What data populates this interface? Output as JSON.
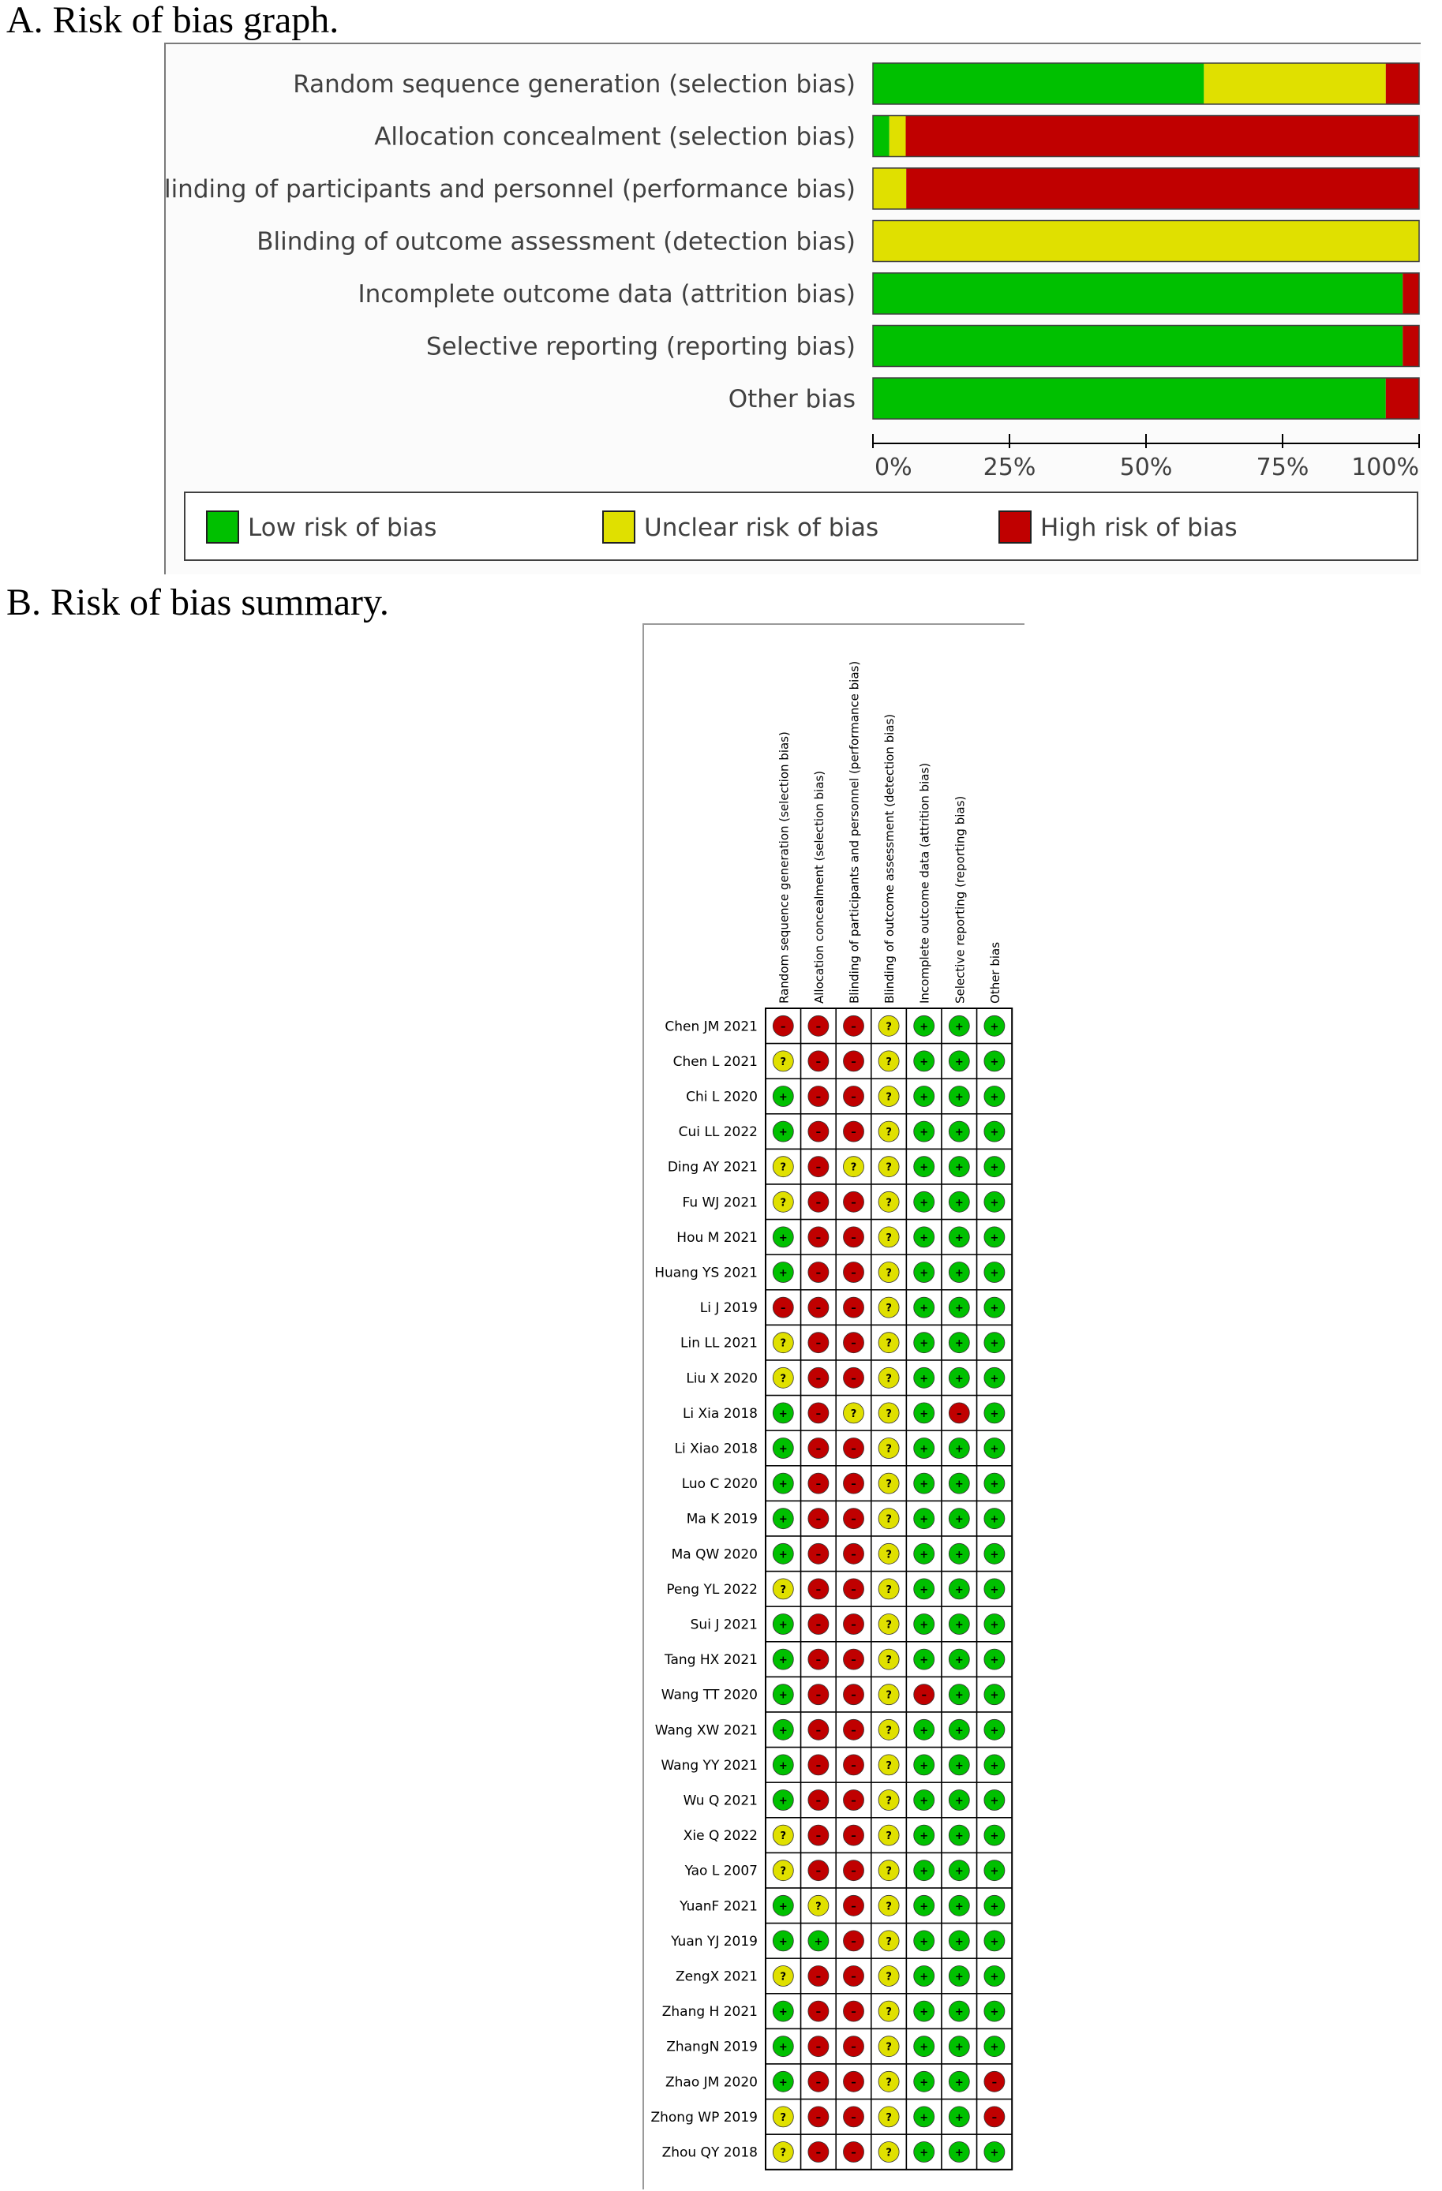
{
  "panel_a_title": "A.  Risk of bias graph.",
  "panel_b_title": "B.  Risk of bias summary.",
  "colors": {
    "low": "#00c000",
    "unclear": "#e0e000",
    "high": "#c00000"
  },
  "chart_data": [
    {
      "type": "bar",
      "orientation": "horizontal-stacked-percent",
      "categories": [
        "Random sequence generation (selection bias)",
        "Allocation concealment (selection bias)",
        "Blinding of participants and personnel (performance bias)",
        "Blinding of outcome assessment (detection bias)",
        "Incomplete outcome data (attrition bias)",
        "Selective reporting (reporting bias)",
        "Other bias"
      ],
      "series": [
        {
          "name": "Low risk of bias",
          "values": [
            60.6,
            3.0,
            0,
            0,
            97.0,
            97.0,
            93.9
          ]
        },
        {
          "name": "Unclear risk of bias",
          "values": [
            33.3,
            3.0,
            6.1,
            100,
            0,
            0,
            0
          ]
        },
        {
          "name": "High risk of bias",
          "values": [
            6.1,
            93.9,
            93.9,
            0,
            3.0,
            3.0,
            6.1
          ]
        }
      ],
      "xticks": [
        "0%",
        "25%",
        "50%",
        "75%",
        "100%"
      ],
      "xlim": [
        0,
        100
      ],
      "legend_position": "bottom"
    },
    {
      "type": "table",
      "domains": [
        "Random sequence generation (selection bias)",
        "Allocation concealment (selection bias)",
        "Blinding of participants and personnel (performance bias)",
        "Blinding of outcome assessment (detection bias)",
        "Incomplete outcome data (attrition bias)",
        "Selective reporting (reporting bias)",
        "Other bias"
      ],
      "studies": [
        "Chen JM 2021",
        "Chen L 2021",
        "Chi L 2020",
        "Cui LL 2022",
        "Ding AY 2021",
        "Fu WJ 2021",
        "Hou M 2021",
        "Huang YS 2021",
        "Li J 2019",
        "Lin LL 2021",
        "Liu X 2020",
        "Li Xia 2018",
        "Li Xiao 2018",
        "Luo C 2020",
        "Ma K 2019",
        "Ma QW 2020",
        "Peng YL 2022",
        "Sui J 2021",
        "Tang HX 2021",
        "Wang TT 2020",
        "Wang XW 2021",
        "Wang YY 2021",
        "Wu Q 2021",
        "Xie Q 2022",
        "Yao L 2007",
        "YuanF 2021",
        "Yuan YJ 2019",
        "ZengX 2021",
        "Zhang H 2021",
        "ZhangN 2019",
        "Zhao JM 2020",
        "Zhong WP 2019",
        "Zhou QY 2018"
      ],
      "judgements": [
        [
          "-",
          "-",
          "-",
          "?",
          "+",
          "+",
          "+"
        ],
        [
          "?",
          "-",
          "-",
          "?",
          "+",
          "+",
          "+"
        ],
        [
          "+",
          "-",
          "-",
          "?",
          "+",
          "+",
          "+"
        ],
        [
          "+",
          "-",
          "-",
          "?",
          "+",
          "+",
          "+"
        ],
        [
          "?",
          "-",
          "?",
          "?",
          "+",
          "+",
          "+"
        ],
        [
          "?",
          "-",
          "-",
          "?",
          "+",
          "+",
          "+"
        ],
        [
          "+",
          "-",
          "-",
          "?",
          "+",
          "+",
          "+"
        ],
        [
          "+",
          "-",
          "-",
          "?",
          "+",
          "+",
          "+"
        ],
        [
          "-",
          "-",
          "-",
          "?",
          "+",
          "+",
          "+"
        ],
        [
          "?",
          "-",
          "-",
          "?",
          "+",
          "+",
          "+"
        ],
        [
          "?",
          "-",
          "-",
          "?",
          "+",
          "+",
          "+"
        ],
        [
          "+",
          "-",
          "?",
          "?",
          "+",
          "-",
          "+"
        ],
        [
          "+",
          "-",
          "-",
          "?",
          "+",
          "+",
          "+"
        ],
        [
          "+",
          "-",
          "-",
          "?",
          "+",
          "+",
          "+"
        ],
        [
          "+",
          "-",
          "-",
          "?",
          "+",
          "+",
          "+"
        ],
        [
          "+",
          "-",
          "-",
          "?",
          "+",
          "+",
          "+"
        ],
        [
          "?",
          "-",
          "-",
          "?",
          "+",
          "+",
          "+"
        ],
        [
          "+",
          "-",
          "-",
          "?",
          "+",
          "+",
          "+"
        ],
        [
          "+",
          "-",
          "-",
          "?",
          "+",
          "+",
          "+"
        ],
        [
          "+",
          "-",
          "-",
          "?",
          "-",
          "+",
          "+"
        ],
        [
          "+",
          "-",
          "-",
          "?",
          "+",
          "+",
          "+"
        ],
        [
          "+",
          "-",
          "-",
          "?",
          "+",
          "+",
          "+"
        ],
        [
          "+",
          "-",
          "-",
          "?",
          "+",
          "+",
          "+"
        ],
        [
          "?",
          "-",
          "-",
          "?",
          "+",
          "+",
          "+"
        ],
        [
          "?",
          "-",
          "-",
          "?",
          "+",
          "+",
          "+"
        ],
        [
          "+",
          "?",
          "-",
          "?",
          "+",
          "+",
          "+"
        ],
        [
          "+",
          "+",
          "-",
          "?",
          "+",
          "+",
          "+"
        ],
        [
          "?",
          "-",
          "-",
          "?",
          "+",
          "+",
          "+"
        ],
        [
          "+",
          "-",
          "-",
          "?",
          "+",
          "+",
          "+"
        ],
        [
          "+",
          "-",
          "-",
          "?",
          "+",
          "+",
          "+"
        ],
        [
          "+",
          "-",
          "-",
          "?",
          "+",
          "+",
          "-"
        ],
        [
          "?",
          "-",
          "-",
          "?",
          "+",
          "+",
          "-"
        ],
        [
          "?",
          "-",
          "-",
          "?",
          "+",
          "+",
          "+"
        ]
      ]
    }
  ]
}
